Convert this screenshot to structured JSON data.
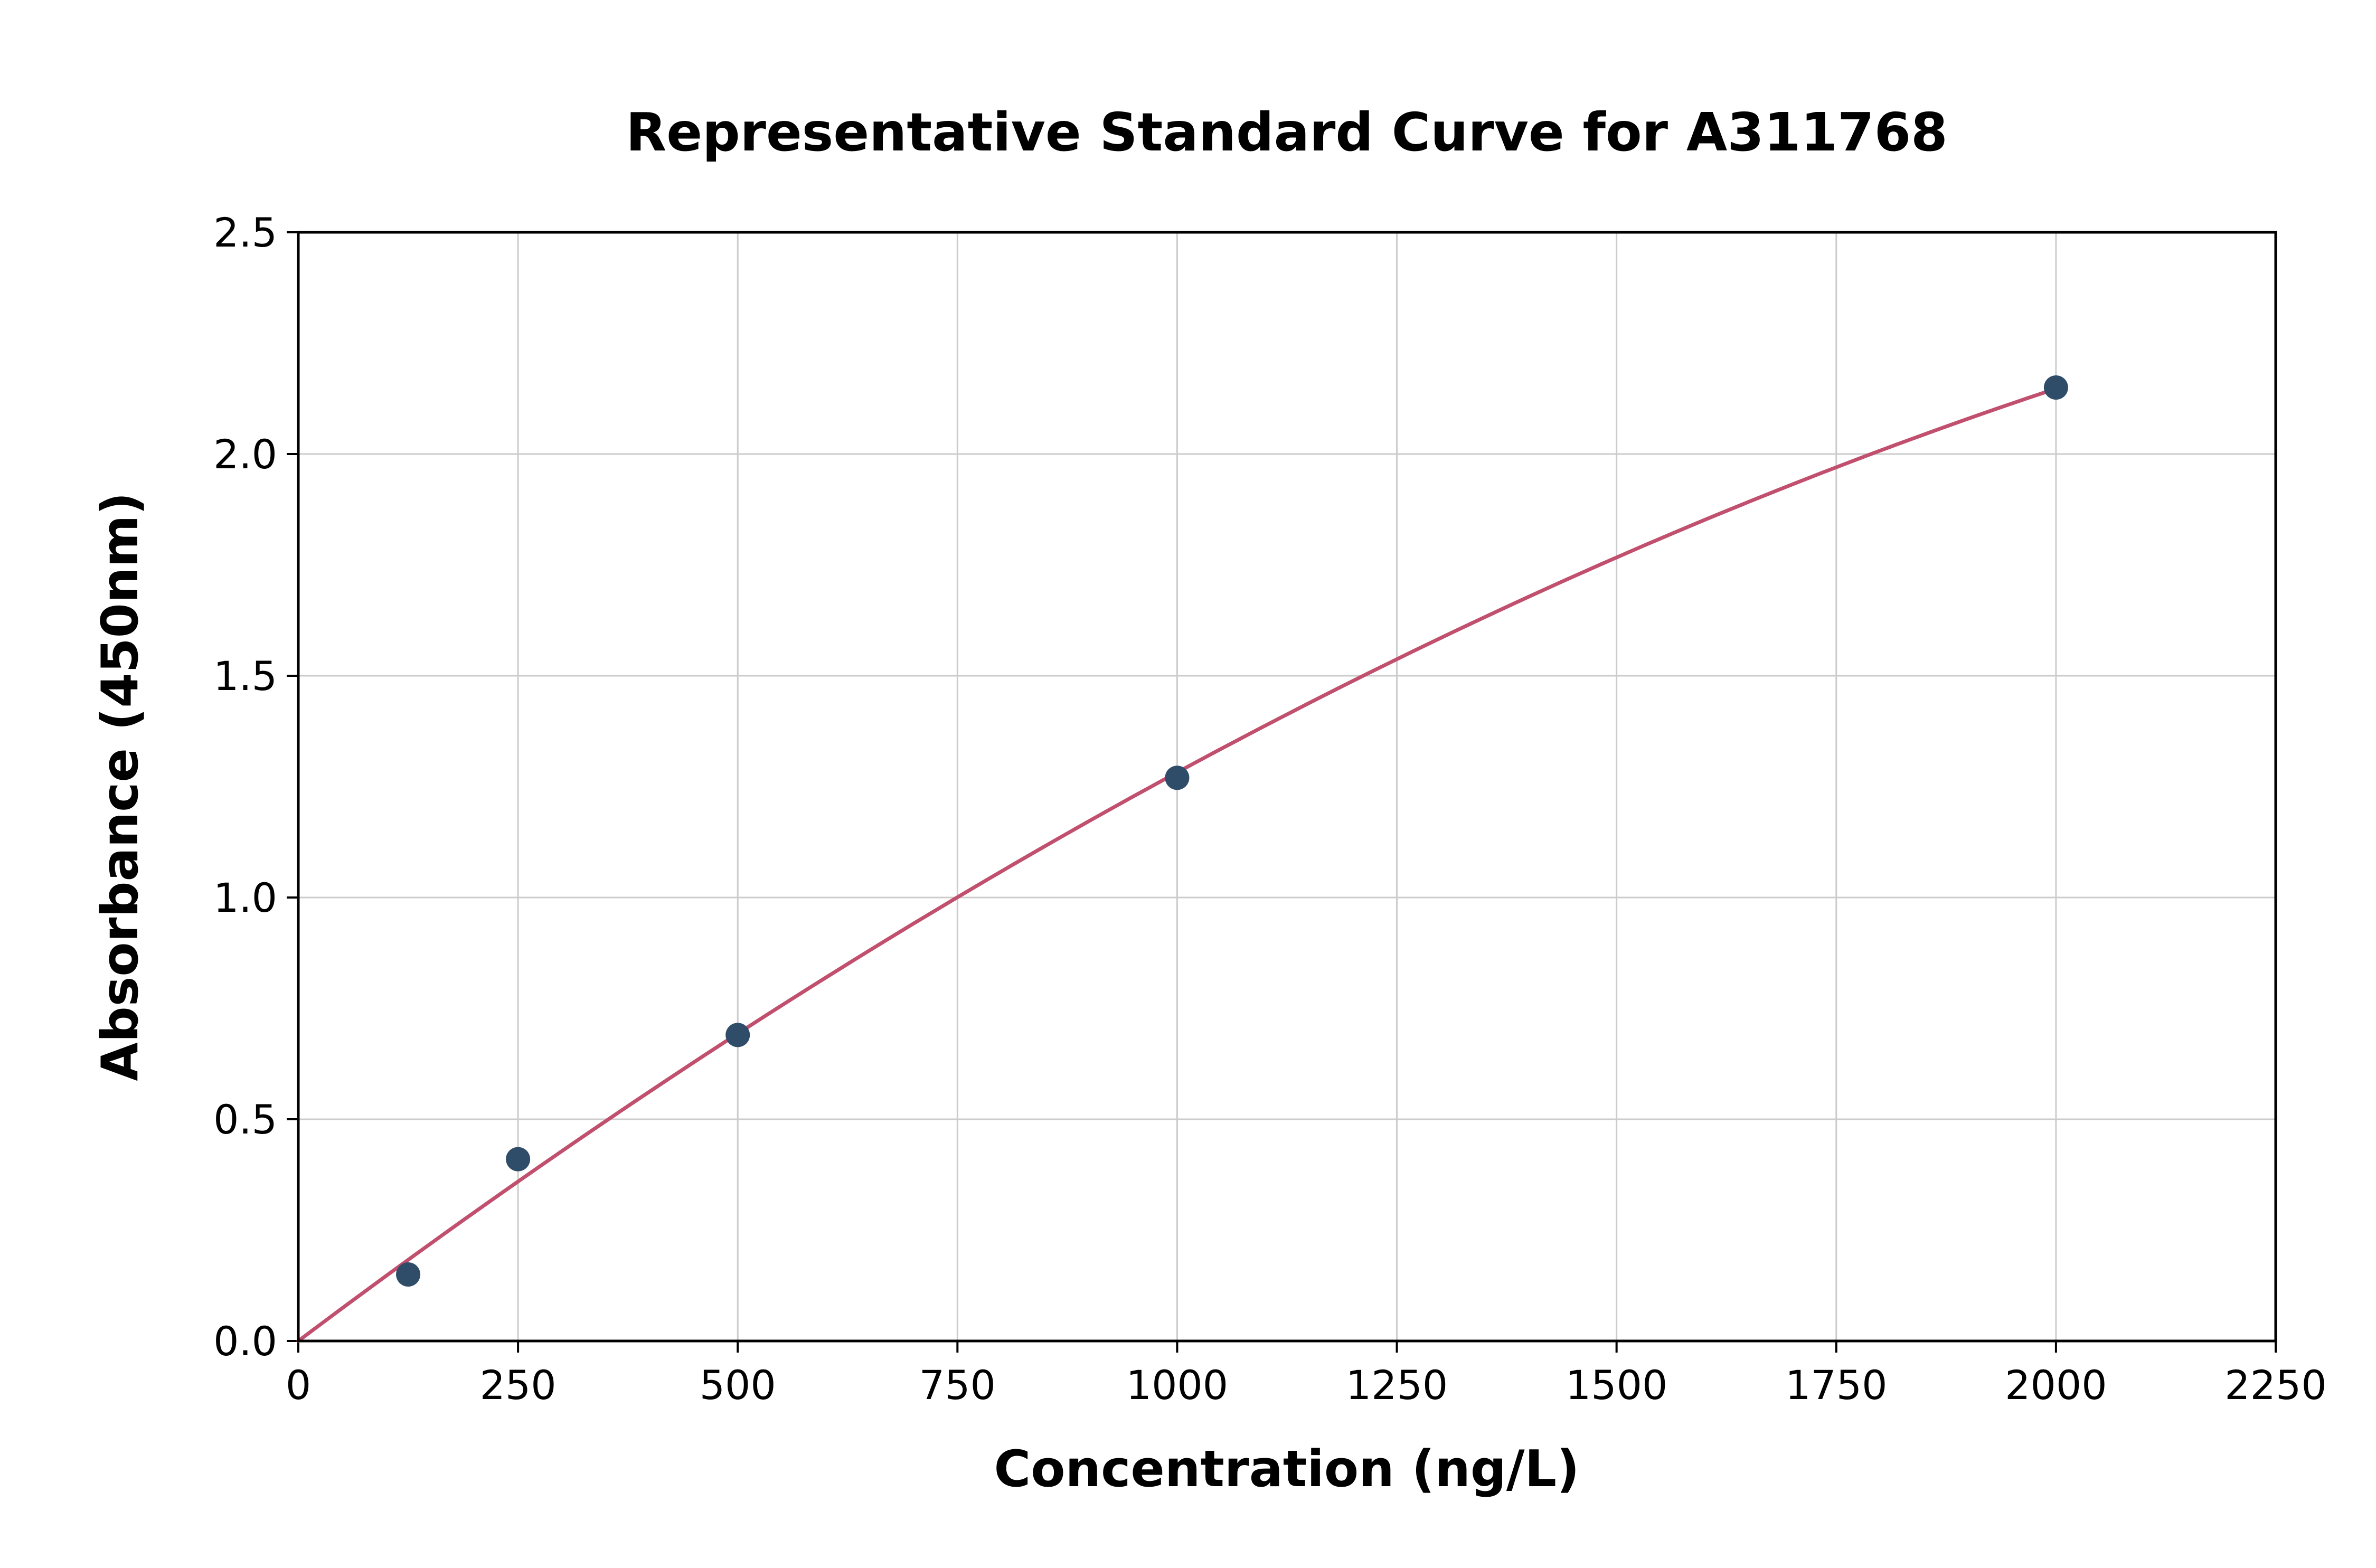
{
  "figure": {
    "background": "#ffffff"
  },
  "chart_data": {
    "type": "scatter",
    "title": "Representative Standard Curve for A311768",
    "xlabel": "Concentration (ng/L)",
    "ylabel": "Absorbance (450nm)",
    "xlim": [
      0,
      2250
    ],
    "ylim": [
      0,
      2.5
    ],
    "grid": true,
    "legend": "none",
    "xticks": [
      {
        "v": 0,
        "label": "0"
      },
      {
        "v": 250,
        "label": "250"
      },
      {
        "v": 500,
        "label": "500"
      },
      {
        "v": 750,
        "label": "750"
      },
      {
        "v": 1000,
        "label": "1000"
      },
      {
        "v": 1250,
        "label": "1250"
      },
      {
        "v": 1500,
        "label": "1500"
      },
      {
        "v": 1750,
        "label": "1750"
      },
      {
        "v": 2000,
        "label": "2000"
      },
      {
        "v": 2250,
        "label": "2250"
      }
    ],
    "yticks": [
      {
        "v": 0.0,
        "label": "0.0"
      },
      {
        "v": 0.5,
        "label": "0.5"
      },
      {
        "v": 1.0,
        "label": "1.0"
      },
      {
        "v": 1.5,
        "label": "1.5"
      },
      {
        "v": 2.0,
        "label": "2.0"
      },
      {
        "v": 2.5,
        "label": "2.5"
      }
    ],
    "points": [
      {
        "x": 125,
        "y": 0.15
      },
      {
        "x": 250,
        "y": 0.41
      },
      {
        "x": 500,
        "y": 0.69
      },
      {
        "x": 1000,
        "y": 1.27
      },
      {
        "x": 2000,
        "y": 2.15
      }
    ],
    "fit_curve": {
      "kind": "quadratic-through-origin-least-squares",
      "x_range": [
        0,
        2000
      ]
    },
    "colors": {
      "curve": "#c14f6e",
      "points": "#2f4d68",
      "grid": "#cccccc",
      "axis": "#000000",
      "text": "#000000",
      "background": "#ffffff"
    }
  }
}
